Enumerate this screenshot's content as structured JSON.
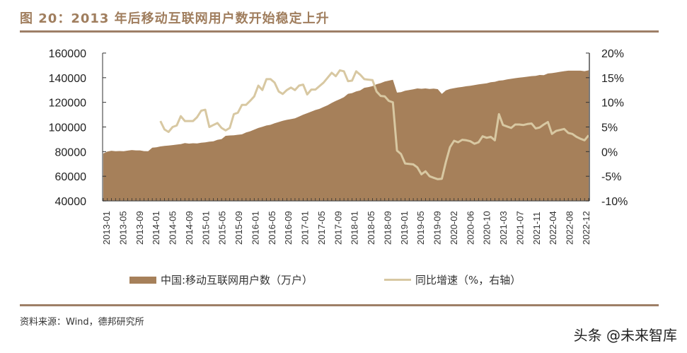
{
  "header": {
    "title": "图 20：2013 年后移动互联网用户数开始稳定上升"
  },
  "footer": {
    "source": "资料来源：Wind，德邦研究所",
    "watermark": "头条 @未来智库"
  },
  "legend": {
    "series1": "中国:移动互联网用户数（万户）",
    "series2": "同比增速（%，右轴）"
  },
  "colors": {
    "area": "#a6805a",
    "line": "#d8c8a2",
    "title": "#a07e5e",
    "rule": "#9e7f67"
  },
  "chart_data": {
    "type": "area+line",
    "title": "图 20：2013 年后移动互联网用户数开始稳定上升",
    "xlabel": "",
    "ylabel_left": "万户",
    "ylabel_right": "%",
    "ylim_left": [
      40000,
      160000
    ],
    "ylim_right": [
      -10,
      20
    ],
    "yticks_left": [
      "160000",
      "140000",
      "120000",
      "100000",
      "80000",
      "60000",
      "40000"
    ],
    "yticks_right": [
      "20%",
      "15%",
      "10%",
      "5%",
      "0%",
      "-5%",
      "-10%"
    ],
    "xtick_labels": [
      "2013-01",
      "2013-05",
      "2013-09",
      "2014-01",
      "2014-05",
      "2014-09",
      "2015-01",
      "2015-05",
      "2015-09",
      "2016-01",
      "2016-05",
      "2016-09",
      "2017-01",
      "2017-05",
      "2017-09",
      "2018-01",
      "2018-05",
      "2018-09",
      "2019-01",
      "2019-05",
      "2019-09",
      "2020-02",
      "2020-06",
      "2020-10",
      "2021-03",
      "2021-07",
      "2021-11",
      "2022-04",
      "2022-08",
      "2022-12"
    ],
    "legend_position": "bottom",
    "grid": false,
    "series": [
      {
        "name": "中国:移动互联网用户数（万户）",
        "type": "area",
        "axis": "left",
        "x_start": "2013-01",
        "x_end": "2022-12",
        "frequency": "monthly",
        "values": [
          78500,
          80000,
          80700,
          80300,
          80500,
          80300,
          80800,
          81300,
          81000,
          81000,
          80400,
          80300,
          83200,
          83500,
          84200,
          84600,
          84900,
          85300,
          85700,
          86100,
          86900,
          86500,
          86800,
          86600,
          87200,
          87500,
          88100,
          88400,
          89600,
          90200,
          92800,
          93100,
          93300,
          93700,
          94000,
          95500,
          96500,
          97900,
          99200,
          100200,
          101200,
          101800,
          103000,
          104000,
          105000,
          105800,
          106400,
          107000,
          108500,
          110000,
          111200,
          112500,
          113800,
          114700,
          116200,
          117700,
          119500,
          121200,
          122600,
          124200,
          126900,
          127500,
          128800,
          129700,
          131800,
          132400,
          133200,
          134700,
          135600,
          136900,
          137600,
          138300,
          127900,
          128300,
          129400,
          130000,
          130600,
          131300,
          131000,
          131300,
          130900,
          131100,
          130700,
          126800,
          129700,
          130900,
          131500,
          132100,
          132500,
          133100,
          133500,
          134000,
          134600,
          135000,
          135400,
          136300,
          136700,
          137600,
          137900,
          138600,
          139100,
          139600,
          140000,
          140400,
          140800,
          141300,
          141500,
          142200,
          142000,
          143400,
          143700,
          144200,
          144800,
          145300,
          145700,
          145700,
          145700,
          145700,
          145300,
          146000
        ]
      },
      {
        "name": "同比增速（%，右轴）",
        "type": "line",
        "axis": "right",
        "x_start": "2014-01",
        "x_end": "2022-12",
        "frequency": "monthly",
        "values": [
          6.2,
          4.5,
          4.0,
          5.0,
          5.3,
          7.2,
          6.2,
          6.2,
          6.2,
          7.0,
          8.3,
          8.5,
          5.0,
          5.4,
          5.8,
          4.8,
          4.3,
          4.8,
          7.6,
          7.9,
          9.5,
          9.5,
          10.3,
          11.2,
          13.4,
          12.5,
          14.7,
          14.7,
          14.0,
          12.2,
          11.7,
          12.5,
          13.0,
          12.5,
          13.4,
          13.6,
          11.6,
          12.6,
          12.6,
          13.3,
          14.0,
          15.0,
          16.0,
          15.3,
          16.5,
          16.3,
          14.3,
          14.4,
          16.3,
          15.6,
          14.7,
          14.6,
          14.5,
          12.2,
          11.3,
          11.2,
          10.3,
          10.0,
          0.2,
          -0.5,
          -2.4,
          -2.5,
          -2.6,
          -3.2,
          -4.6,
          -4.0,
          -5.0,
          -5.3,
          -5.6,
          -5.5,
          -2.1,
          0.9,
          2.2,
          1.9,
          2.4,
          2.3,
          2.1,
          1.6,
          1.9,
          3.1,
          2.8,
          3.0,
          2.3,
          7.6,
          5.4,
          5.1,
          4.8,
          5.5,
          5.5,
          5.4,
          5.6,
          5.7,
          4.7,
          4.9,
          5.5,
          6.0,
          3.6,
          4.2,
          4.4,
          4.6,
          3.8,
          3.6,
          3.0,
          2.6,
          2.3,
          3.3
        ]
      }
    ]
  }
}
